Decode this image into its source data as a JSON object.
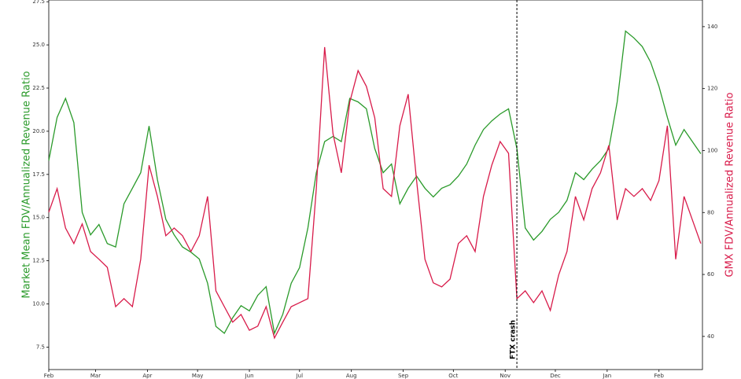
{
  "chart_data": {
    "type": "line",
    "y_label": "Market Mean FDV/Annualized Revenue Ratio",
    "y2_label": "GMX FDV/Annualized Revenue Ratio",
    "x": [
      0,
      5,
      10,
      15,
      20,
      25,
      30,
      35,
      40,
      45,
      50,
      55,
      60,
      65,
      70,
      75,
      80,
      85,
      90,
      95,
      100,
      105,
      110,
      115,
      120,
      125,
      130,
      135,
      140,
      145,
      150,
      155,
      160,
      165,
      170,
      175,
      180,
      185,
      190,
      195,
      200,
      205,
      210,
      215,
      220,
      225,
      230,
      235,
      240,
      245,
      250,
      255,
      260,
      265,
      270,
      275,
      280,
      285,
      290,
      295,
      300,
      305,
      310,
      315,
      320,
      325,
      330,
      335,
      340,
      345,
      350,
      355,
      360,
      365,
      370,
      375,
      380,
      385,
      390
    ],
    "xlim": [
      0,
      391
    ],
    "xticks": [
      {
        "value": 0,
        "label": "Feb"
      },
      {
        "value": 28,
        "label": "Mar"
      },
      {
        "value": 59,
        "label": "Apr"
      },
      {
        "value": 89,
        "label": "May"
      },
      {
        "value": 120,
        "label": "Jun"
      },
      {
        "value": 150,
        "label": "Jul"
      },
      {
        "value": 181,
        "label": "Aug"
      },
      {
        "value": 212,
        "label": "Sep"
      },
      {
        "value": 242,
        "label": "Oct"
      },
      {
        "value": 273,
        "label": "Nov"
      },
      {
        "value": 303,
        "label": "Dec"
      },
      {
        "value": 334,
        "label": "Jan"
      },
      {
        "value": 365,
        "label": "Feb"
      }
    ],
    "ylim": [
      6.2,
      27.6
    ],
    "yticks": [
      7.5,
      {
        "value": 10,
        "label": "10.0"
      },
      12.5,
      {
        "value": 15,
        "label": "15.0"
      },
      17.5,
      {
        "value": 20,
        "label": "20.0"
      },
      22.5,
      {
        "value": 25,
        "label": "25.0"
      },
      27.5
    ],
    "y2lim": [
      29.3,
      148.6
    ],
    "y2ticks": [
      40,
      60,
      80,
      100,
      120,
      140
    ],
    "series": [
      {
        "color": "#2a9a2a",
        "values": [
          18.3,
          20.8,
          21.9,
          20.5,
          15.3,
          14.0,
          14.6,
          13.5,
          13.3,
          15.8,
          16.7,
          17.6,
          20.3,
          17.2,
          14.9,
          14.0,
          13.3,
          13.0,
          12.6,
          11.2,
          8.7,
          8.3,
          9.2,
          9.9,
          9.6,
          10.5,
          11.0,
          8.3,
          9.4,
          11.2,
          12.1,
          14.4,
          17.6,
          19.4,
          19.7,
          19.4,
          21.9,
          21.7,
          21.3,
          19.0,
          17.6,
          18.1,
          15.8,
          16.7,
          17.4,
          16.7,
          16.2,
          16.7,
          16.9,
          17.4,
          18.1,
          19.2,
          20.1,
          20.6,
          21.0,
          21.3,
          19.0,
          14.4,
          13.7,
          14.2,
          14.9,
          15.3,
          16.0,
          17.6,
          17.2,
          17.8,
          18.3,
          19.0,
          21.7,
          25.8,
          25.4,
          24.9,
          24.0,
          22.6,
          20.8,
          19.2,
          20.1,
          19.4,
          18.7
        ]
      },
      {
        "color": "#d81b4a",
        "axis": "y2",
        "values": [
          80.1,
          87.7,
          75.0,
          70.0,
          76.3,
          67.4,
          64.9,
          62.3,
          49.6,
          52.2,
          49.6,
          64.9,
          95.3,
          85.2,
          72.5,
          75.0,
          72.5,
          67.4,
          72.5,
          85.2,
          54.7,
          49.6,
          44.6,
          47.1,
          42.0,
          43.3,
          49.6,
          39.5,
          44.6,
          49.6,
          50.9,
          52.2,
          87.7,
          133.4,
          105.5,
          92.8,
          115.6,
          125.8,
          120.7,
          110.6,
          87.7,
          85.2,
          108.0,
          118.2,
          90.3,
          64.9,
          57.3,
          56.0,
          58.5,
          70.0,
          72.5,
          67.4,
          85.2,
          95.3,
          102.9,
          99.1,
          52.2,
          54.7,
          50.9,
          54.7,
          48.4,
          59.8,
          67.4,
          85.2,
          77.6,
          87.7,
          92.8,
          101.7,
          77.6,
          87.7,
          85.2,
          87.7,
          83.9,
          90.3,
          108.0,
          64.9,
          85.2,
          77.6,
          70.0
        ]
      }
    ],
    "annotation": {
      "text": "FTX crash",
      "x": 280
    }
  }
}
